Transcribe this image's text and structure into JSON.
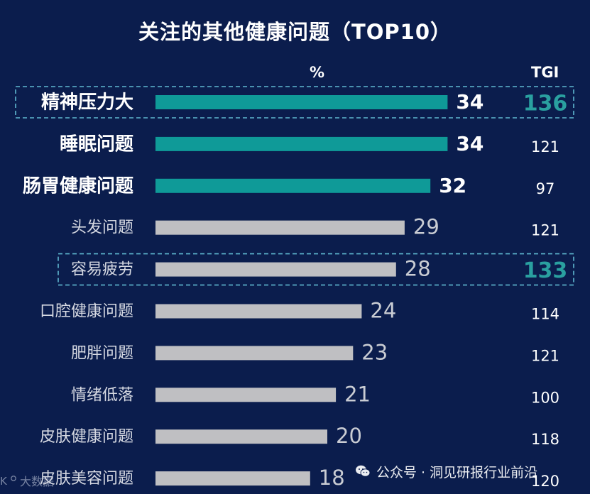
{
  "title": "关注的其他健康问题（TOP10）",
  "header": {
    "pct": "%",
    "tgi": "TGI"
  },
  "colors": {
    "background": "#0b1d4d",
    "highlight_bar": "#0f9a98",
    "normal_bar": "#bfbfc2",
    "highlight_tgi": "#2aa0a0",
    "dashed_box": "#5fb8d0"
  },
  "chart_data": {
    "type": "bar",
    "orientation": "horizontal",
    "title": "关注的其他健康问题（TOP10）",
    "categories": [
      "精神压力大",
      "睡眠问题",
      "肠胃健康问题",
      "头发问题",
      "容易疲劳",
      "口腔健康问题",
      "肥胖问题",
      "情绪低落",
      "皮肤健康问题",
      "皮肤美容问题"
    ],
    "series": [
      {
        "name": "%",
        "values": [
          34,
          34,
          32,
          29,
          28,
          24,
          23,
          21,
          20,
          18
        ]
      },
      {
        "name": "TGI",
        "values": [
          136,
          121,
          97,
          121,
          133,
          114,
          121,
          100,
          118,
          120
        ]
      }
    ],
    "highlighted_bars": [
      0,
      1,
      2
    ],
    "boxed_rows": [
      0,
      4
    ],
    "xlim": [
      0,
      40
    ],
    "grid": false
  },
  "watermark": {
    "text": "公众号 · 洞见研报行业前沿",
    "icon": "wechat-icon"
  },
  "corner_mark": {
    "text": "大数据",
    "icon": "logo-icon"
  }
}
